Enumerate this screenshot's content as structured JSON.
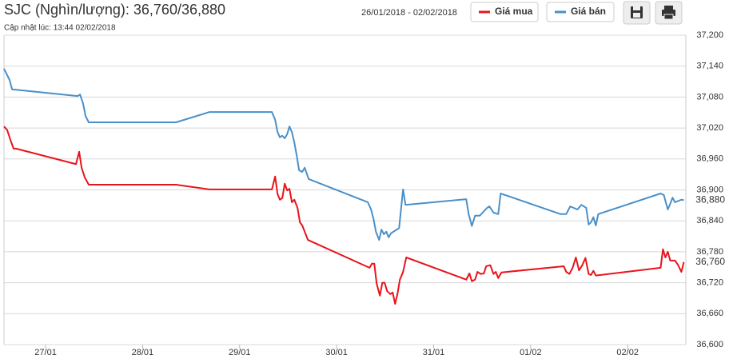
{
  "chart_data": {
    "type": "line",
    "title": "SJC (Nghìn/lượng): 36,760/36,880",
    "subtitle": "Cập nhật lúc: 13:44 02/02/2018",
    "date_range": "26/01/2018 - 02/02/2018",
    "grid": true,
    "xlim": [
      0.571,
      7.6
    ],
    "xticks": [
      {
        "value": 1,
        "label": "27/01"
      },
      {
        "value": 2,
        "label": "28/01"
      },
      {
        "value": 3,
        "label": "29/01"
      },
      {
        "value": 4,
        "label": "30/01"
      },
      {
        "value": 5,
        "label": "31/01"
      },
      {
        "value": 6,
        "label": "01/02"
      },
      {
        "value": 7,
        "label": "02/02"
      }
    ],
    "ylim": [
      36600,
      37200
    ],
    "yticks": [
      {
        "value": 36600,
        "label": "36,600"
      },
      {
        "value": 36660,
        "label": "36,660"
      },
      {
        "value": 36720,
        "label": "36,720"
      },
      {
        "value": 36780,
        "label": "36,780"
      },
      {
        "value": 36840,
        "label": "36,840"
      },
      {
        "value": 36900,
        "label": "36,900"
      },
      {
        "value": 36960,
        "label": "36,960"
      },
      {
        "value": 37020,
        "label": "37,020"
      },
      {
        "value": 37080,
        "label": "37,080"
      },
      {
        "value": 37140,
        "label": "37,140"
      },
      {
        "value": 37200,
        "label": "37,200"
      }
    ],
    "series": [
      {
        "name": "Giá mua",
        "color": "#e8141b",
        "last_label": "36,760",
        "x": [
          0.571,
          0.604,
          0.637,
          0.67,
          0.695,
          1.313,
          1.346,
          1.371,
          1.404,
          1.445,
          2.344,
          2.69,
          3.333,
          3.366,
          3.391,
          3.415,
          3.44,
          3.465,
          3.49,
          3.514,
          3.539,
          3.564,
          3.597,
          3.622,
          3.646,
          3.704,
          4.339,
          4.364,
          4.388,
          4.413,
          4.446,
          4.471,
          4.495,
          4.52,
          4.553,
          4.578,
          4.603,
          4.627,
          4.652,
          4.685,
          4.718,
          5.336,
          5.369,
          5.394,
          5.427,
          5.452,
          5.485,
          5.518,
          5.542,
          5.584,
          5.617,
          5.641,
          5.666,
          5.699,
          6.342,
          6.367,
          6.4,
          6.433,
          6.466,
          6.499,
          6.532,
          6.565,
          6.598,
          6.622,
          6.647,
          6.672,
          7.34,
          7.364,
          7.389,
          7.414,
          7.439,
          7.488,
          7.521,
          7.554,
          7.579
        ],
        "values": [
          37023,
          37016,
          36997,
          36980,
          36980,
          36950,
          36974,
          36943,
          36924,
          36910,
          36910,
          36901,
          36901,
          36926,
          36892,
          36881,
          36884,
          36912,
          36899,
          36902,
          36876,
          36881,
          36865,
          36837,
          36831,
          36803,
          36749,
          36757,
          36757,
          36718,
          36695,
          36720,
          36720,
          36704,
          36698,
          36701,
          36679,
          36698,
          36726,
          36741,
          36769,
          36726,
          36738,
          36723,
          36726,
          36741,
          36737,
          36738,
          36752,
          36754,
          36737,
          36741,
          36729,
          36740,
          36752,
          36741,
          36737,
          36749,
          36769,
          36744,
          36754,
          36768,
          36737,
          36735,
          36743,
          36734,
          36749,
          36785,
          36769,
          36780,
          36763,
          36763,
          36754,
          36741,
          36760
        ]
      },
      {
        "name": "Giá bán",
        "color": "#4a90c8",
        "last_label": "36,880",
        "x": [
          0.571,
          0.629,
          0.654,
          1.33,
          1.355,
          1.387,
          1.412,
          1.445,
          2.344,
          2.69,
          3.333,
          3.366,
          3.391,
          3.415,
          3.44,
          3.465,
          3.49,
          3.514,
          3.539,
          3.564,
          3.589,
          3.613,
          3.646,
          3.671,
          3.712,
          4.322,
          4.355,
          4.38,
          4.405,
          4.438,
          4.462,
          4.487,
          4.512,
          4.536,
          4.561,
          4.644,
          4.685,
          4.71,
          5.336,
          5.361,
          5.394,
          5.427,
          5.476,
          5.51,
          5.551,
          5.575,
          5.617,
          5.666,
          5.691,
          6.309,
          6.367,
          6.408,
          6.482,
          6.524,
          6.573,
          6.598,
          6.622,
          6.647,
          6.672,
          6.697,
          7.34,
          7.373,
          7.414,
          7.439,
          7.463,
          7.488,
          7.554,
          7.579
        ],
        "values": [
          37135,
          37113,
          37095,
          37082,
          37085,
          37067,
          37043,
          37031,
          37031,
          37051,
          37051,
          37036,
          37012,
          37002,
          37005,
          37000,
          37008,
          37023,
          37012,
          36992,
          36966,
          36938,
          36935,
          36943,
          36921,
          36876,
          36862,
          36844,
          36819,
          36803,
          36823,
          36814,
          36819,
          36808,
          36816,
          36826,
          36901,
          36871,
          36882,
          36853,
          36830,
          36850,
          36850,
          36857,
          36865,
          36868,
          36856,
          36853,
          36893,
          36853,
          36853,
          36868,
          36862,
          36871,
          36865,
          36833,
          36837,
          36847,
          36831,
          36853,
          36893,
          36890,
          36862,
          36873,
          36885,
          36876,
          36881,
          36880
        ]
      }
    ]
  }
}
